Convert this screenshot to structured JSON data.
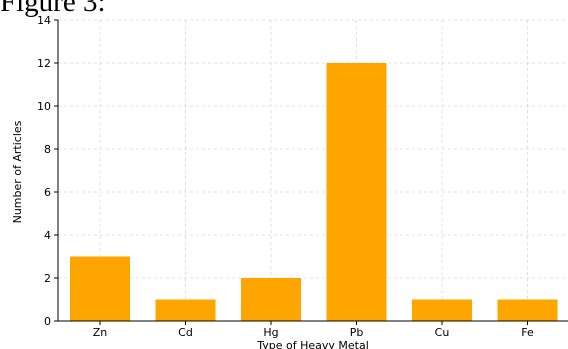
{
  "figure_caption": "Figure 3:",
  "chart_data": {
    "type": "bar",
    "categories": [
      "Zn",
      "Cd",
      "Hg",
      "Pb",
      "Cu",
      "Fe"
    ],
    "values": [
      3,
      1,
      2,
      12,
      1,
      1
    ],
    "xlabel": "Type of Heavy Metal",
    "ylabel": "Number of Articles",
    "ylim": [
      0,
      14
    ],
    "yticks": [
      "0",
      "2",
      "4",
      "6",
      "8",
      "10",
      "12",
      "14"
    ],
    "grid": true,
    "bar_color": "#FFA500",
    "grid_color": "#d9d9d9"
  }
}
